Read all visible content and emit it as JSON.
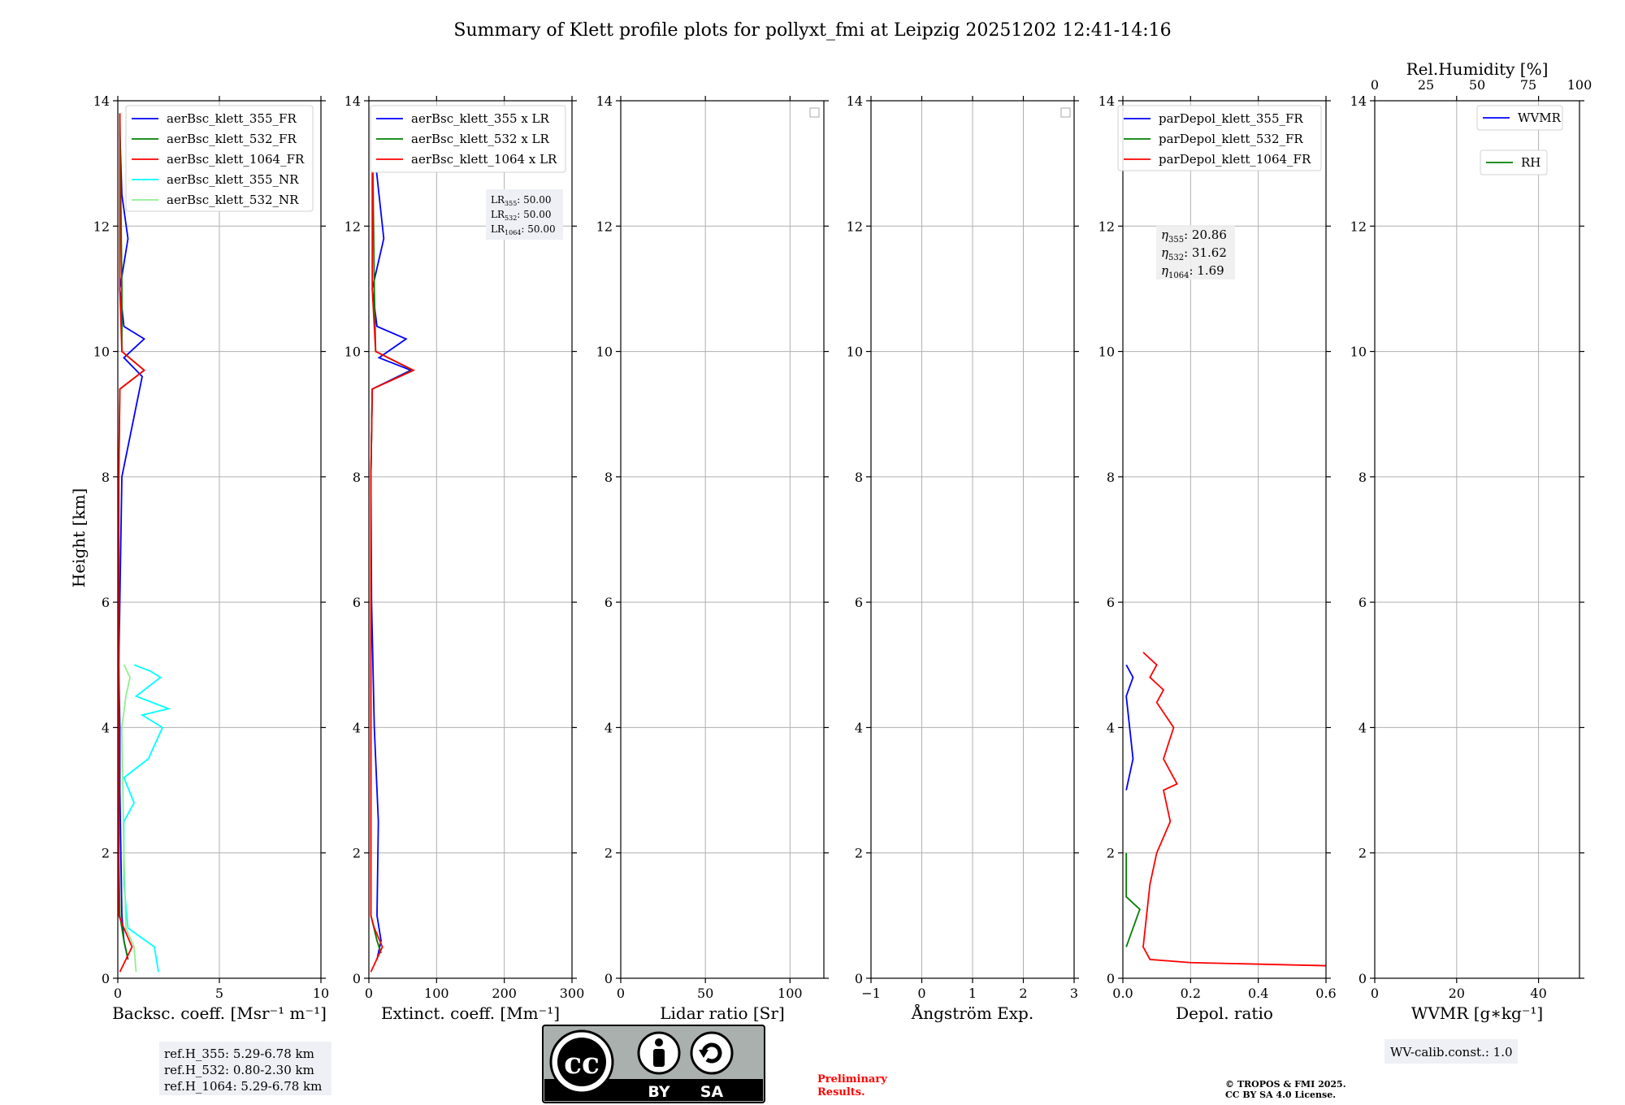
{
  "title": "Summary of Klett profile plots for pollyxt_fmi at Leipzig 20251202 12:41-14:16",
  "colors": {
    "blue": "#0000ff",
    "green": "#008000",
    "red": "#ff0000",
    "cyan": "#00ffff",
    "lightgreen": "#90ee90"
  },
  "chart_data": [
    {
      "type": "line",
      "panel": "backscatter",
      "xlabel": "Backsc. coeff. [Msr⁻¹ m⁻¹]",
      "ylabel": "Height [km]",
      "xlim": [
        0,
        10
      ],
      "ylim": [
        0,
        14
      ],
      "xticks": [
        "0",
        "5",
        "10"
      ],
      "yticks": [
        "0",
        "2",
        "4",
        "6",
        "8",
        "10",
        "12",
        "14"
      ],
      "legend": [
        "aerBsc_klett_355_FR",
        "aerBsc_klett_532_FR",
        "aerBsc_klett_1064_FR",
        "aerBsc_klett_355_NR",
        "aerBsc_klett_532_NR"
      ],
      "series": [
        {
          "name": "aerBsc_klett_355_FR",
          "color": "#0000ff",
          "x": [
            0.5,
            0.3,
            0.2,
            0.15,
            0.1,
            0.1,
            0.05,
            0.1,
            0.2,
            1.2,
            0.3,
            1.3,
            0.3,
            0.1,
            0.5,
            0.2,
            0.1
          ],
          "y": [
            0.3,
            0.6,
            1,
            2,
            3,
            4,
            5,
            6,
            8,
            9.6,
            9.9,
            10.2,
            10.4,
            11,
            11.8,
            12.5,
            13.5
          ]
        },
        {
          "name": "aerBsc_klett_532_FR",
          "color": "#008000",
          "x": [
            0.5,
            0.3,
            0.1,
            0.05,
            0.05,
            0.05,
            0.05,
            0.1,
            1.3,
            0.2,
            0.2,
            0.1
          ],
          "y": [
            0.3,
            0.6,
            1,
            2,
            4,
            6,
            8,
            9.4,
            9.7,
            10,
            11,
            13.8
          ]
        },
        {
          "name": "aerBsc_klett_1064_FR",
          "color": "#ff0000",
          "x": [
            0.1,
            0.7,
            0.3,
            0.05,
            0.05,
            0.05,
            0.05,
            0.1,
            1.3,
            0.2,
            0.1,
            0.1
          ],
          "y": [
            0.1,
            0.5,
            0.8,
            1,
            3,
            6,
            8,
            9.4,
            9.7,
            10,
            11,
            13.8
          ]
        },
        {
          "name": "aerBsc_klett_355_NR",
          "color": "#00ffff",
          "x": [
            2.0,
            1.8,
            0.5,
            0.3,
            0.3,
            0.8,
            0.3,
            1.5,
            2.2,
            1.2,
            2.5,
            0.9,
            2.1,
            1.6,
            0.8
          ],
          "y": [
            0.1,
            0.5,
            0.8,
            1.5,
            2.5,
            2.8,
            3.2,
            3.5,
            4.0,
            4.2,
            4.3,
            4.5,
            4.8,
            4.9,
            5.0
          ]
        },
        {
          "name": "aerBsc_klett_532_NR",
          "color": "#90ee90",
          "x": [
            0.9,
            0.8,
            0.4,
            0.3,
            0.2,
            0.4,
            0.6,
            0.3
          ],
          "y": [
            0.1,
            0.5,
            0.8,
            2,
            4,
            4.5,
            4.8,
            5.0
          ]
        }
      ]
    },
    {
      "type": "line",
      "panel": "extinction",
      "xlabel": "Extinct. coeff. [Mm⁻¹]",
      "xlim": [
        0,
        300
      ],
      "ylim": [
        0,
        14
      ],
      "xticks": [
        "0",
        "100",
        "200",
        "300"
      ],
      "yticks": [
        "0",
        "2",
        "4",
        "6",
        "8",
        "10",
        "12",
        "14"
      ],
      "legend": [
        "aerBsc_klett_355 x LR",
        "aerBsc_klett_532 x LR",
        "aerBsc_klett_1064 x LR"
      ],
      "series": [
        {
          "name": "aerBsc_klett_355 x LR",
          "color": "#0000ff",
          "x": [
            12,
            18,
            12,
            14,
            8,
            4,
            3,
            5,
            62,
            15,
            55,
            12,
            5,
            22,
            5
          ],
          "y": [
            0.3,
            0.6,
            1,
            2.5,
            4,
            6,
            8,
            9.4,
            9.7,
            9.9,
            10.2,
            10.4,
            11,
            11.8,
            13.5
          ]
        },
        {
          "name": "aerBsc_klett_532 x LR",
          "color": "#008000",
          "x": [
            18,
            12,
            3,
            3,
            3,
            3,
            5,
            65,
            10,
            8,
            5
          ],
          "y": [
            0.4,
            0.6,
            1,
            3,
            6,
            8,
            9.4,
            9.7,
            10,
            11,
            13.8
          ]
        },
        {
          "name": "aerBsc_klett_1064 x LR",
          "color": "#ff0000",
          "x": [
            3,
            20,
            8,
            3,
            3,
            3,
            5,
            66,
            10,
            5,
            5
          ],
          "y": [
            0.1,
            0.5,
            0.8,
            1,
            4,
            8,
            9.4,
            9.7,
            10,
            11,
            13.8
          ]
        }
      ],
      "annotation": {
        "lr355": "50.00",
        "lr532": "50.00",
        "lr1064": "50.00"
      }
    },
    {
      "type": "line",
      "panel": "lidar-ratio",
      "xlabel": "Lidar ratio [Sr]",
      "xlim": [
        0,
        120
      ],
      "ylim": [
        0,
        14
      ],
      "xticks": [
        "0",
        "50",
        "100"
      ],
      "yticks": [
        "0",
        "2",
        "4",
        "6",
        "8",
        "10",
        "12",
        "14"
      ],
      "series": []
    },
    {
      "type": "line",
      "panel": "angstrom",
      "xlabel": "Ångström Exp.",
      "xlim": [
        -1,
        3
      ],
      "ylim": [
        0,
        14
      ],
      "xticks": [
        "−1",
        "0",
        "1",
        "2",
        "3"
      ],
      "yticks": [
        "0",
        "2",
        "4",
        "6",
        "8",
        "10",
        "12",
        "14"
      ],
      "series": []
    },
    {
      "type": "line",
      "panel": "depolarization",
      "xlabel": "Depol. ratio",
      "xlim": [
        0,
        0.6
      ],
      "ylim": [
        0,
        14
      ],
      "xticks": [
        "0.0",
        "0.2",
        "0.4",
        "0.6"
      ],
      "yticks": [
        "0",
        "2",
        "4",
        "6",
        "8",
        "10",
        "12",
        "14"
      ],
      "legend": [
        "parDepol_klett_355_FR",
        "parDepol_klett_532_FR",
        "parDepol_klett_1064_FR"
      ],
      "series": [
        {
          "name": "parDepol_klett_1064_FR",
          "color": "#ff0000",
          "x": [
            0.6,
            0.2,
            0.08,
            0.06,
            0.07,
            0.08,
            0.1,
            0.14,
            0.12,
            0.16,
            0.12,
            0.15,
            0.1,
            0.12,
            0.08,
            0.1,
            0.06
          ],
          "y": [
            0.2,
            0.25,
            0.3,
            0.5,
            1,
            1.5,
            2,
            2.5,
            3.0,
            3.1,
            3.5,
            4.0,
            4.4,
            4.6,
            4.8,
            5.0,
            5.2
          ]
        },
        {
          "name": "parDepol_klett_532_FR",
          "color": "#008000",
          "x": [
            0.01,
            0.03,
            0.05,
            0.03,
            0.01,
            0.01
          ],
          "y": [
            0.5,
            0.8,
            1.1,
            1.2,
            1.3,
            2
          ]
        },
        {
          "name": "parDepol_klett_355_FR",
          "color": "#0000ff",
          "x": [
            0.01,
            0.03,
            0.01,
            0.03,
            0.01
          ],
          "y": [
            3.0,
            3.5,
            4.5,
            4.8,
            5.0
          ]
        }
      ],
      "annotation": {
        "eta355": "20.86",
        "eta532": "31.62",
        "eta1064": "1.69"
      }
    },
    {
      "type": "line",
      "panel": "wvmr",
      "xlabel": "WVMR [g∗kg⁻¹]",
      "x2label": "Rel.Humidity [%]",
      "xlim": [
        0,
        50
      ],
      "x2lim": [
        0,
        100
      ],
      "ylim": [
        0,
        14
      ],
      "xticks": [
        "0",
        "20",
        "40"
      ],
      "x2ticks": [
        "0",
        "25",
        "50",
        "75",
        "100"
      ],
      "yticks": [
        "0",
        "2",
        "4",
        "6",
        "8",
        "10",
        "12",
        "14"
      ],
      "legend": [
        "WVMR",
        "RH"
      ],
      "series": []
    }
  ],
  "ref_box": {
    "l1": "ref.H_355: 5.29-6.78 km",
    "l2": "ref.H_532: 0.80-2.30 km",
    "l3": "ref.H_1064: 5.29-6.78 km"
  },
  "wv_calib": "WV-calib.const.: 1.0",
  "license_badge": {
    "cc": "cc",
    "by": "BY",
    "sa": "SA"
  },
  "preliminary": {
    "line1": "Preliminary",
    "line2": "Results."
  },
  "copyright": {
    "line1": "© TROPOS & FMI 2025.",
    "line2": "CC BY SA 4.0 License."
  }
}
